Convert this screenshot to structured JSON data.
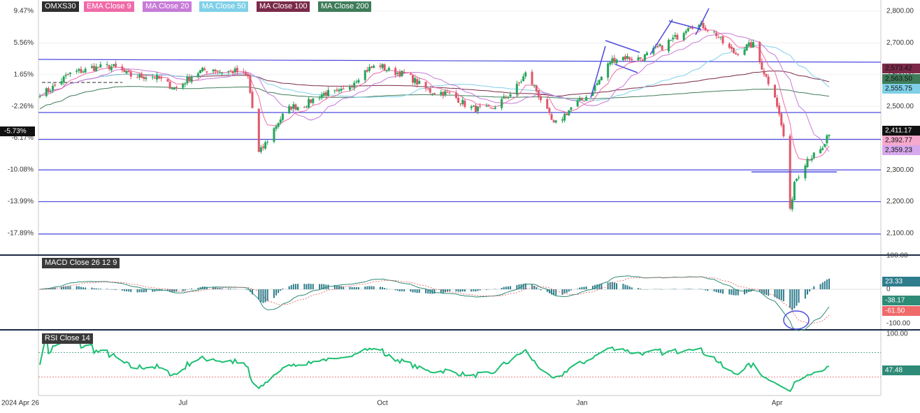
{
  "legend": {
    "symbol": {
      "label": "OMXS30",
      "color": "#2f2f2f"
    },
    "ema9": {
      "label": "EMA Close 9",
      "color": "#f06aa8"
    },
    "ma20": {
      "label": "MA Close 20",
      "color": "#c77ad8"
    },
    "ma50": {
      "label": "MA Close 50",
      "color": "#7fd0e8"
    },
    "ma100": {
      "label": "MA Close 100",
      "color": "#7a2a48"
    },
    "ma200": {
      "label": "MA Close 200",
      "color": "#3f7c5a"
    }
  },
  "macd_label": "MACD Close 26 12 9",
  "rsi_label": "RSI Close 14",
  "chart_data": [
    {
      "type": "candlestick",
      "title": "OMXS30",
      "x_tick_labels": [
        "2024 Apr 26",
        "Jul",
        "Oct",
        "Jan",
        "Apr"
      ],
      "y_right_ticks": [
        "2,800.00",
        "2,700.00",
        "2,600.00",
        "2,500.00",
        "2,400.00",
        "2,300.00",
        "2,200.00",
        "2,100.00"
      ],
      "y_left_pct_ticks": [
        "9.47%",
        "5.56%",
        "1.65%",
        "-2.26%",
        "-6.17%",
        "-10.08%",
        "-13.99%",
        "-17.89%"
      ],
      "ylim": [
        2065,
        2830
      ],
      "current_pct_label": "-5.73%",
      "price_labels": [
        {
          "text": "2,573.42",
          "series": "MA Close 100",
          "color": "#7a2a48"
        },
        {
          "text": "2,563.50",
          "series": "MA Close 200",
          "color": "#3f7c5a"
        },
        {
          "text": "2,555.75",
          "series": "MA Close 50",
          "color": "#7fd0e8"
        },
        {
          "text": "2,411.17",
          "series": "Close",
          "color": "#111111"
        },
        {
          "text": "2,392.77",
          "series": "EMA Close 9",
          "color": "#f6a9cc"
        },
        {
          "text": "2,359.23",
          "series": "MA Close 20",
          "color": "#d6a8ec"
        }
      ],
      "horizontal_levels": [
        2396,
        2300,
        2200,
        2098
      ],
      "anchor_points": [
        {
          "date": "2024-04-26",
          "close": 2545
        },
        {
          "date": "2024-05-20",
          "close": 2630
        },
        {
          "date": "2024-06-10",
          "close": 2600
        },
        {
          "date": "2024-06-28",
          "close": 2565
        },
        {
          "date": "2024-07-15",
          "close": 2625
        },
        {
          "date": "2024-07-31",
          "close": 2590
        },
        {
          "date": "2024-08-05",
          "close": 2360
        },
        {
          "date": "2024-08-20",
          "close": 2500
        },
        {
          "date": "2024-09-10",
          "close": 2545
        },
        {
          "date": "2024-09-30",
          "close": 2635
        },
        {
          "date": "2024-10-15",
          "close": 2580
        },
        {
          "date": "2024-11-01",
          "close": 2530
        },
        {
          "date": "2024-11-20",
          "close": 2480
        },
        {
          "date": "2024-12-06",
          "close": 2600
        },
        {
          "date": "2024-12-19",
          "close": 2450
        },
        {
          "date": "2025-01-02",
          "close": 2520
        },
        {
          "date": "2025-01-14",
          "close": 2640
        },
        {
          "date": "2025-01-28",
          "close": 2660
        },
        {
          "date": "2025-02-07",
          "close": 2680
        },
        {
          "date": "2025-02-19",
          "close": 2760
        },
        {
          "date": "2025-03-04",
          "close": 2730
        },
        {
          "date": "2025-03-13",
          "close": 2665
        },
        {
          "date": "2025-03-21",
          "close": 2690
        },
        {
          "date": "2025-03-31",
          "close": 2540
        },
        {
          "date": "2025-04-04",
          "close": 2400
        },
        {
          "date": "2025-04-07",
          "close": 2160
        },
        {
          "date": "2025-04-09",
          "close": 2260
        },
        {
          "date": "2025-04-15",
          "close": 2345
        },
        {
          "date": "2025-04-22",
          "close": 2360
        },
        {
          "date": "2025-04-25",
          "close": 2411
        }
      ]
    },
    {
      "type": "macd",
      "title": "MACD Close 26 12 9",
      "y_ticks": [
        "100.00",
        "0",
        "-100.00"
      ],
      "value_labels": [
        {
          "text": "23.33",
          "series": "histogram",
          "color": "#2e7d8c"
        },
        {
          "text": "-38.17",
          "series": "MACD",
          "color": "#2e8b77"
        },
        {
          "text": "-61.50",
          "series": "signal",
          "color": "#f06a6a"
        }
      ]
    },
    {
      "type": "rsi",
      "title": "RSI Close 14",
      "y_ticks": [
        "100.00"
      ],
      "current_label": "47.48",
      "bands": [
        70,
        30
      ]
    }
  ]
}
